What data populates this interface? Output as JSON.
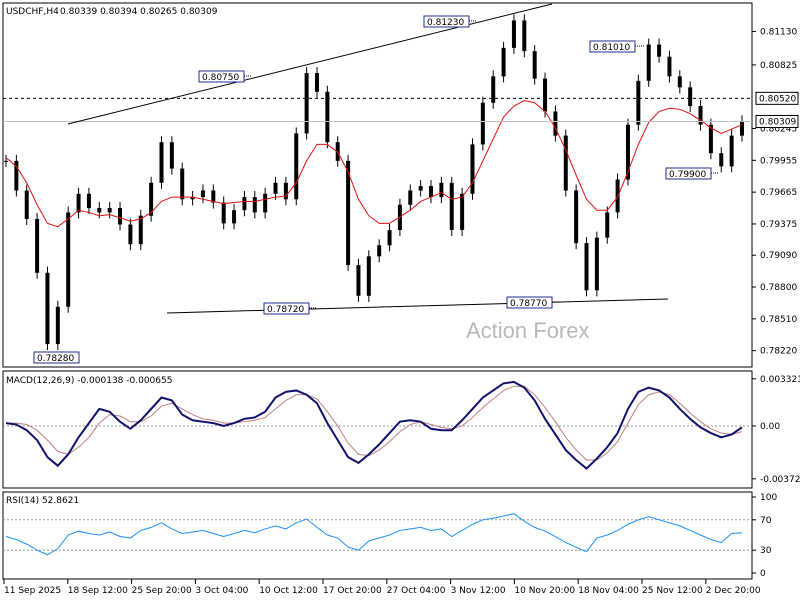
{
  "chart_data": [
    {
      "type": "candlestick",
      "title": "USDCHF,H4",
      "ohlc_header": "0.80339 0.80394 0.80265 0.80309",
      "ylim": [
        0.7808,
        0.8138
      ],
      "y_ticks": [
        "0.81130",
        "0.80825",
        "0.80245",
        "0.79955",
        "0.79665",
        "0.79375",
        "0.79090",
        "0.78800",
        "0.78510",
        "0.78220"
      ],
      "x_ticks": [
        "11 Sep 2025",
        "18 Sep 12:00",
        "25 Sep 20:00",
        "3 Oct 04:00",
        "10 Oct 12:00",
        "17 Oct 20:00",
        "27 Oct 04:00",
        "3 Nov 12:00",
        "10 Nov 20:00",
        "18 Nov 04:00",
        "25 Nov 12:00",
        "2 Dec 20:00"
      ],
      "current_price": "0.80309",
      "dashed_level": "0.80520",
      "annotations": [
        "0.78280",
        "0.80750",
        "0.81230",
        "0.78720",
        "0.78770",
        "0.81010",
        "0.79900"
      ],
      "watermark": "Action Forex",
      "series": [
        {
          "name": "price",
          "values": [
            0.7995,
            0.7968,
            0.7942,
            0.7893,
            0.7828,
            0.7862,
            0.7948,
            0.7965,
            0.7952,
            0.7948,
            0.7952,
            0.7937,
            0.7919,
            0.7945,
            0.7975,
            0.8012,
            0.7988,
            0.796,
            0.7962,
            0.7968,
            0.7957,
            0.7938,
            0.795,
            0.7962,
            0.7948,
            0.7965,
            0.7975,
            0.796,
            0.802,
            0.8075,
            0.8058,
            0.8012,
            0.7995,
            0.79,
            0.7872,
            0.7908,
            0.7918,
            0.7932,
            0.7955,
            0.7968,
            0.7972,
            0.7962,
            0.7975,
            0.7932,
            0.7965,
            0.801,
            0.8048,
            0.8072,
            0.8098,
            0.8123,
            0.8095,
            0.807,
            0.804,
            0.8018,
            0.7968,
            0.792,
            0.7877,
            0.7925,
            0.7948,
            0.7978,
            0.8028,
            0.8068,
            0.8101,
            0.809,
            0.8072,
            0.8062,
            0.8045,
            0.8028,
            0.8002,
            0.799,
            0.8018,
            0.8031
          ]
        },
        {
          "name": "moving-average",
          "values": [
            0.7998,
            0.799,
            0.7975,
            0.7955,
            0.7938,
            0.7935,
            0.7942,
            0.795,
            0.7948,
            0.7945,
            0.7946,
            0.7943,
            0.794,
            0.7942,
            0.7948,
            0.7958,
            0.7962,
            0.7962,
            0.7962,
            0.796,
            0.7958,
            0.7956,
            0.7957,
            0.7958,
            0.7958,
            0.796,
            0.7962,
            0.7963,
            0.7975,
            0.7995,
            0.801,
            0.801,
            0.8003,
            0.7985,
            0.796,
            0.7945,
            0.7938,
            0.7938,
            0.7944,
            0.795,
            0.7958,
            0.7962,
            0.7966,
            0.796,
            0.7962,
            0.7975,
            0.7995,
            0.8015,
            0.8035,
            0.8045,
            0.805,
            0.8048,
            0.804,
            0.8025,
            0.8005,
            0.7982,
            0.796,
            0.795,
            0.795,
            0.7962,
            0.7985,
            0.801,
            0.803,
            0.804,
            0.8043,
            0.8042,
            0.8038,
            0.8032,
            0.8025,
            0.802,
            0.8024,
            0.8028
          ]
        }
      ]
    },
    {
      "type": "line",
      "title": "MACD(12,26,9) -0.000138 -0.000655",
      "ylim": [
        -0.0043,
        0.0038
      ],
      "y_ticks": [
        "0.003321",
        "0.00",
        "-0.003723"
      ],
      "series": [
        {
          "name": "macd",
          "values": [
            0.0002,
            0.0001,
            -0.0003,
            -0.001,
            -0.0022,
            -0.0028,
            -0.002,
            -0.0008,
            0.0002,
            0.0012,
            0.001,
            0.0003,
            -0.0002,
            0.0004,
            0.0012,
            0.002,
            0.0018,
            0.0008,
            0.0004,
            0.0003,
            0.0002,
            0.0,
            0.0002,
            0.0005,
            0.0006,
            0.001,
            0.002,
            0.0024,
            0.0025,
            0.0022,
            0.0016,
            0.0002,
            -0.001,
            -0.0022,
            -0.0026,
            -0.002,
            -0.0013,
            -0.0005,
            0.0003,
            0.0004,
            0.0003,
            -0.0002,
            -0.0003,
            -0.0003,
            0.0004,
            0.0012,
            0.002,
            0.0025,
            0.003,
            0.0031,
            0.0027,
            0.0018,
            0.0005,
            -0.0006,
            -0.0017,
            -0.0024,
            -0.003,
            -0.0023,
            -0.0015,
            -0.0005,
            0.0012,
            0.0024,
            0.0027,
            0.0025,
            0.002,
            0.0012,
            0.0005,
            -0.0001,
            -0.0005,
            -0.0008,
            -0.0006,
            -0.0001
          ]
        },
        {
          "name": "signal",
          "values": [
            0.0002,
            0.0002,
            0.0001,
            -0.0003,
            -0.001,
            -0.0018,
            -0.002,
            -0.0015,
            -0.0008,
            0.0002,
            0.0008,
            0.0007,
            0.0003,
            0.0003,
            0.0007,
            0.0014,
            0.0016,
            0.0012,
            0.0008,
            0.0005,
            0.0004,
            0.0002,
            0.0002,
            0.0003,
            0.0004,
            0.0006,
            0.0012,
            0.0018,
            0.0022,
            0.0022,
            0.0019,
            0.001,
            0.0,
            -0.0012,
            -0.002,
            -0.0021,
            -0.0017,
            -0.0011,
            -0.0004,
            0.0001,
            0.0003,
            0.0001,
            -0.0001,
            -0.0002,
            0.0,
            0.0006,
            0.0013,
            0.0019,
            0.0025,
            0.0028,
            0.0028,
            0.0022,
            0.0013,
            0.0003,
            -0.0008,
            -0.0017,
            -0.0024,
            -0.0024,
            -0.0019,
            -0.0011,
            0.0002,
            0.0015,
            0.0022,
            0.0024,
            0.0022,
            0.0016,
            0.0009,
            0.0003,
            -0.0002,
            -0.0005,
            -0.0006,
            -0.0004
          ]
        }
      ]
    },
    {
      "type": "line",
      "title": "RSI(14) 52.8621",
      "ylim": [
        0,
        100
      ],
      "y_ticks": [
        "100",
        "70",
        "30",
        "0"
      ],
      "levels": [
        70,
        30
      ],
      "series": [
        {
          "name": "rsi",
          "values": [
            48,
            44,
            38,
            30,
            24,
            32,
            50,
            55,
            52,
            50,
            54,
            48,
            46,
            56,
            60,
            66,
            58,
            52,
            54,
            56,
            52,
            48,
            52,
            56,
            53,
            58,
            62,
            58,
            66,
            71,
            60,
            50,
            46,
            34,
            30,
            42,
            46,
            50,
            56,
            58,
            60,
            56,
            58,
            48,
            56,
            64,
            70,
            72,
            75,
            78,
            68,
            60,
            55,
            48,
            40,
            34,
            28,
            46,
            50,
            56,
            64,
            70,
            74,
            70,
            66,
            62,
            56,
            50,
            44,
            40,
            52,
            53
          ]
        }
      ]
    }
  ]
}
